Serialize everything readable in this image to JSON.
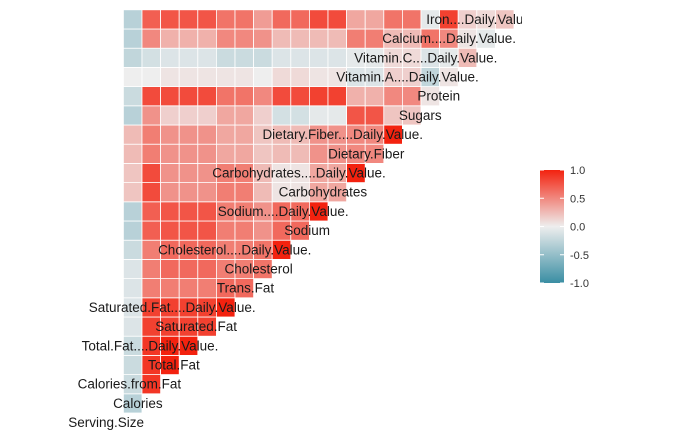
{
  "chart_data": {
    "type": "heatmap",
    "variables": [
      "Serving.Size",
      "Calories",
      "Calories.from.Fat",
      "Total.Fat",
      "Total.Fat....Daily.Value.",
      "Saturated.Fat",
      "Saturated.Fat....Daily.Value.",
      "Trans.Fat",
      "Cholesterol",
      "Cholesterol....Daily.Value.",
      "Sodium",
      "Sodium....Daily.Value.",
      "Carbohydrates",
      "Carbohydrates....Daily.Value.",
      "Dietary.Fiber",
      "Dietary.Fiber....Daily.Value.",
      "Sugars",
      "Protein",
      "Vitamin.A....Daily.Value.",
      "Vitamin.C....Daily.Value.",
      "Calcium....Daily.Value.",
      "Iron....Daily.Value."
    ],
    "values": [
      [],
      [
        -0.3
      ],
      [
        -0.2,
        0.9
      ],
      [
        -0.2,
        0.9,
        1.0
      ],
      [
        -0.2,
        0.9,
        1.0,
        1.0
      ],
      [
        -0.1,
        0.85,
        0.85,
        0.85,
        0.85
      ],
      [
        -0.1,
        0.85,
        0.85,
        0.85,
        0.85,
        1.0
      ],
      [
        -0.1,
        0.55,
        0.55,
        0.55,
        0.55,
        0.65,
        0.65
      ],
      [
        -0.1,
        0.55,
        0.65,
        0.65,
        0.65,
        0.55,
        0.55,
        0.6
      ],
      [
        -0.2,
        0.55,
        0.65,
        0.65,
        0.65,
        0.55,
        0.55,
        0.6,
        1.0
      ],
      [
        -0.3,
        0.7,
        0.75,
        0.75,
        0.75,
        0.55,
        0.55,
        0.45,
        0.65,
        0.65
      ],
      [
        -0.3,
        0.7,
        0.75,
        0.75,
        0.75,
        0.55,
        0.55,
        0.45,
        0.65,
        0.65,
        1.0
      ],
      [
        0.2,
        0.8,
        0.45,
        0.45,
        0.45,
        0.55,
        0.55,
        0.25,
        0.05,
        0.05,
        0.35,
        0.35
      ],
      [
        0.2,
        0.8,
        0.45,
        0.45,
        0.45,
        0.55,
        0.55,
        0.25,
        0.05,
        0.05,
        0.35,
        0.35,
        1.0
      ],
      [
        0.25,
        0.55,
        0.45,
        0.45,
        0.45,
        0.35,
        0.35,
        0.2,
        0.25,
        0.25,
        0.45,
        0.45,
        0.5,
        0.5
      ],
      [
        0.25,
        0.55,
        0.45,
        0.45,
        0.45,
        0.35,
        0.35,
        0.2,
        0.25,
        0.25,
        0.45,
        0.45,
        0.5,
        0.5,
        1.0
      ],
      [
        -0.3,
        0.45,
        0.15,
        0.15,
        0.15,
        0.35,
        0.35,
        0.15,
        -0.15,
        -0.15,
        -0.05,
        -0.05,
        0.75,
        0.75,
        0.2,
        0.2
      ],
      [
        -0.2,
        0.8,
        0.8,
        0.8,
        0.8,
        0.6,
        0.6,
        0.5,
        0.8,
        0.8,
        0.85,
        0.85,
        0.3,
        0.3,
        0.5,
        0.5,
        0.05
      ],
      [
        0.0,
        0.0,
        0.05,
        0.05,
        0.05,
        0.05,
        0.05,
        0.0,
        0.1,
        0.1,
        0.05,
        0.05,
        -0.1,
        -0.1,
        0.15,
        0.15,
        -0.25,
        0.05
      ],
      [
        -0.25,
        -0.15,
        -0.1,
        -0.1,
        -0.1,
        -0.2,
        -0.2,
        -0.2,
        -0.1,
        -0.1,
        -0.1,
        -0.1,
        -0.05,
        -0.05,
        0.1,
        0.1,
        -0.1,
        -0.05,
        0.25
      ],
      [
        -0.3,
        0.5,
        0.3,
        0.3,
        0.3,
        0.5,
        0.5,
        0.45,
        0.25,
        0.25,
        0.25,
        0.25,
        0.55,
        0.55,
        0.25,
        0.25,
        0.6,
        0.5,
        0.05,
        -0.05
      ],
      [
        -0.3,
        0.7,
        0.75,
        0.75,
        0.75,
        0.6,
        0.6,
        0.4,
        0.65,
        0.65,
        0.8,
        0.8,
        0.35,
        0.35,
        0.6,
        0.6,
        -0.05,
        0.85,
        0.15,
        0.1,
        0.2
      ]
    ],
    "legend": {
      "title": "",
      "ticks": [
        1.0,
        0.5,
        0.0,
        -0.5,
        -1.0
      ],
      "tick_labels": [
        "1.0",
        "0.5",
        "0.0",
        "-0.5",
        "-1.0"
      ],
      "limits": [
        -1,
        1
      ],
      "placement": "right"
    },
    "colors": {
      "low": "#3a8ea3",
      "mid": "#eeeeee",
      "high": "#f3220f"
    },
    "grid": false
  }
}
